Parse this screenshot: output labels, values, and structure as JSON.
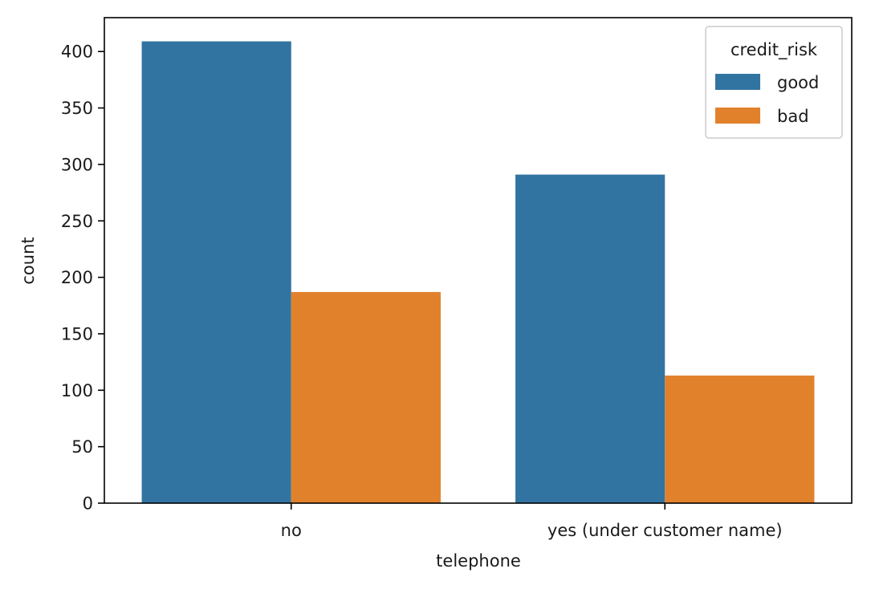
{
  "chart_data": {
    "type": "bar",
    "xlabel": "telephone",
    "ylabel": "count",
    "categories": [
      "no",
      "yes (under customer name)"
    ],
    "series": [
      {
        "name": "good",
        "values": [
          409,
          291
        ],
        "color": "#3274a1"
      },
      {
        "name": "bad",
        "values": [
          187,
          113
        ],
        "color": "#e1812c"
      }
    ],
    "ylim": [
      0,
      430
    ],
    "yticks": [
      0,
      50,
      100,
      150,
      200,
      250,
      300,
      350,
      400
    ],
    "legend": {
      "title": "credit_risk",
      "placement": "top-right"
    },
    "grid": false
  }
}
